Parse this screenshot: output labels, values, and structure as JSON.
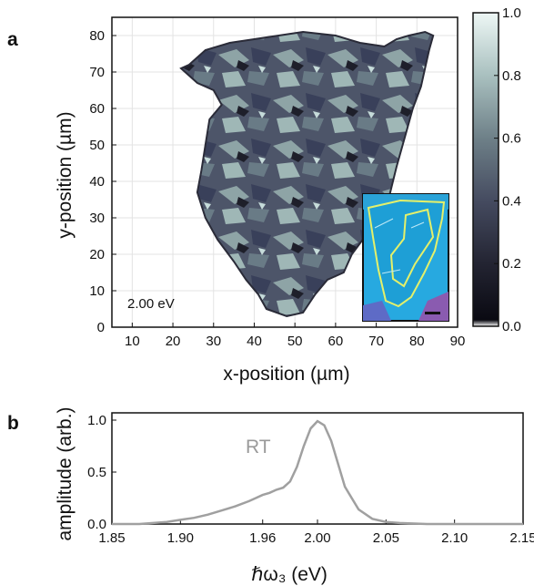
{
  "panels": {
    "a": "a",
    "b": "b"
  },
  "chart_data": [
    {
      "panel": "a",
      "type": "heatmap",
      "xlabel": "x-position (µm)",
      "ylabel": "y-position (µm)",
      "xlim": [
        5,
        90
      ],
      "ylim": [
        0,
        85
      ],
      "xticks": [
        "10",
        "20",
        "30",
        "40",
        "50",
        "60",
        "70",
        "80",
        "90"
      ],
      "yticks": [
        "0",
        "10",
        "20",
        "30",
        "40",
        "50",
        "60",
        "70",
        "80"
      ],
      "annotation": "2.00 eV",
      "grid": true,
      "colorbar": {
        "ticks": [
          "0.0",
          "0.2",
          "0.4",
          "0.6",
          "0.8",
          "1.0"
        ],
        "range": [
          0,
          1
        ],
        "colormap": "bone",
        "colors": [
          "#ffffff",
          "#0a0a12",
          "#2b2c3a",
          "#505a70",
          "#8fa6a8",
          "#e8f4f2"
        ]
      },
      "outline_um": [
        [
          43,
          5
        ],
        [
          48,
          3
        ],
        [
          52,
          4
        ],
        [
          55,
          9
        ],
        [
          58,
          13
        ],
        [
          62,
          15
        ],
        [
          64,
          20
        ],
        [
          68,
          26
        ],
        [
          71,
          30
        ],
        [
          73,
          35
        ],
        [
          75,
          44
        ],
        [
          77,
          52
        ],
        [
          79,
          60
        ],
        [
          81,
          66
        ],
        [
          82,
          71
        ],
        [
          83,
          76
        ],
        [
          84,
          80
        ],
        [
          82,
          81
        ],
        [
          78,
          80
        ],
        [
          75,
          79
        ],
        [
          72,
          77
        ],
        [
          66,
          78
        ],
        [
          60,
          80
        ],
        [
          52,
          81
        ],
        [
          46,
          80
        ],
        [
          40,
          79
        ],
        [
          34,
          78
        ],
        [
          28,
          76
        ],
        [
          24,
          72
        ],
        [
          22,
          71
        ],
        [
          26,
          67
        ],
        [
          30,
          65
        ],
        [
          32,
          61
        ],
        [
          29,
          57
        ],
        [
          28,
          50
        ],
        [
          27,
          43
        ],
        [
          26,
          37
        ],
        [
          28,
          30
        ],
        [
          31,
          24
        ],
        [
          35,
          18
        ],
        [
          38,
          13
        ],
        [
          41,
          9
        ]
      ],
      "inset_note": "optical micrograph with highlighted region"
    },
    {
      "panel": "b",
      "type": "line",
      "xlabel": "ℏω₃ (eV)",
      "ylabel": "amplitude (arb.)",
      "xlim": [
        1.85,
        2.15
      ],
      "ylim": [
        0.0,
        1.0
      ],
      "xticks": [
        "1.85",
        "1.90",
        "1.96",
        "2.00",
        "2.05",
        "2.10",
        "2.15"
      ],
      "yticks": [
        "0.0",
        "0.5",
        "1.0"
      ],
      "color": "#a0a0a0",
      "series": [
        {
          "name": "RT",
          "x": [
            1.85,
            1.86,
            1.87,
            1.88,
            1.89,
            1.9,
            1.91,
            1.92,
            1.93,
            1.94,
            1.95,
            1.955,
            1.96,
            1.965,
            1.97,
            1.975,
            1.98,
            1.985,
            1.99,
            1.995,
            2.0,
            2.005,
            2.01,
            2.015,
            2.02,
            2.03,
            2.04,
            2.05,
            2.06,
            2.08,
            2.1,
            2.12,
            2.15
          ],
          "values": [
            0.0,
            0.0,
            0.0,
            0.01,
            0.02,
            0.04,
            0.06,
            0.09,
            0.13,
            0.17,
            0.22,
            0.25,
            0.28,
            0.3,
            0.33,
            0.35,
            0.41,
            0.55,
            0.75,
            0.92,
            0.99,
            0.95,
            0.8,
            0.58,
            0.36,
            0.14,
            0.05,
            0.02,
            0.01,
            0.0,
            0.0,
            0.0,
            0.0
          ]
        }
      ]
    }
  ]
}
